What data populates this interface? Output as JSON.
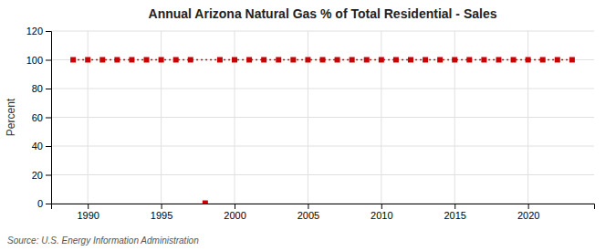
{
  "chart_data": {
    "type": "line",
    "title": "Annual Arizona Natural Gas % of Total Residential - Sales",
    "y_label": "Percent",
    "annotation": "Source: U.S. Energy Information Administration",
    "xlim": [
      1987.5,
      2024.5
    ],
    "ylim": [
      0,
      120
    ],
    "xticks": [
      1990,
      1995,
      2000,
      2005,
      2010,
      2015,
      2020
    ],
    "yticks": [
      0,
      20,
      40,
      60,
      80,
      100,
      120
    ],
    "grid": true,
    "series": [
      {
        "color": "#cc0000",
        "marker": "square",
        "line_style": "dotted",
        "x": [
          1989,
          1990,
          1991,
          1992,
          1993,
          1994,
          1995,
          1996,
          1997,
          1999,
          2000,
          2001,
          2002,
          2003,
          2004,
          2005,
          2006,
          2007,
          2008,
          2009,
          2010,
          2011,
          2012,
          2013,
          2014,
          2015,
          2016,
          2017,
          2018,
          2019,
          2020,
          2021,
          2022,
          2023
        ],
        "values": [
          100,
          100,
          100,
          100,
          100,
          100,
          100,
          100,
          100,
          100,
          100,
          100,
          100,
          100,
          100,
          100,
          100,
          100,
          100,
          100,
          100,
          100,
          100,
          100,
          100,
          100,
          100,
          100,
          100,
          100,
          100,
          100,
          100,
          100
        ]
      },
      {
        "color": "#cc0000",
        "marker": "square",
        "line_style": "none",
        "x": [
          1998
        ],
        "values": [
          0.3
        ]
      }
    ]
  }
}
